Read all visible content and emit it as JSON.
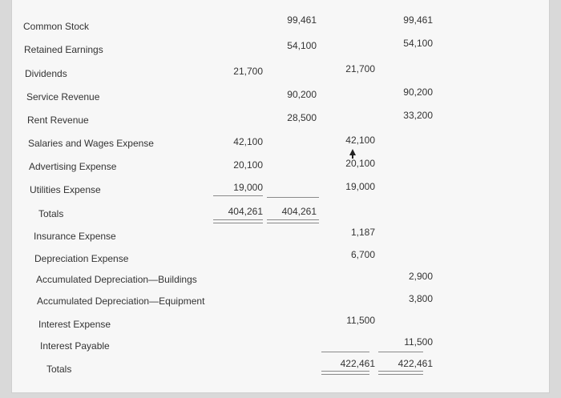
{
  "rows": [
    {
      "label": "Common Stock",
      "c1": "",
      "c2": "99,461",
      "c3": "",
      "c4": "99,461"
    },
    {
      "label": "Retained Earnings",
      "c1": "",
      "c2": "54,100",
      "c3": "",
      "c4": "54,100"
    },
    {
      "label": "Dividends",
      "c1": "21,700",
      "c2": "",
      "c3": "21,700",
      "c4": ""
    },
    {
      "label": "Service Revenue",
      "c1": "",
      "c2": "90,200",
      "c3": "",
      "c4": "90,200"
    },
    {
      "label": "Rent Revenue",
      "c1": "",
      "c2": "28,500",
      "c3": "",
      "c4": "33,200"
    },
    {
      "label": "Salaries and Wages Expense",
      "c1": "42,100",
      "c2": "",
      "c3": "42,100",
      "c4": ""
    },
    {
      "label": "Advertising Expense",
      "c1": "20,100",
      "c2": "",
      "c3": "20,100",
      "c4": ""
    },
    {
      "label": "Utilities Expense",
      "c1": "19,000",
      "c2": "",
      "c3": "19,000",
      "c4": ""
    },
    {
      "label": "Totals",
      "c1": "404,261",
      "c2": "404,261",
      "c3": "",
      "c4": ""
    },
    {
      "label": "Insurance Expense",
      "c1": "",
      "c2": "",
      "c3": "1,187",
      "c4": ""
    },
    {
      "label": "Depreciation Expense",
      "c1": "",
      "c2": "",
      "c3": "6,700",
      "c4": ""
    },
    {
      "label": "Accumulated Depreciation—Buildings",
      "c1": "",
      "c2": "",
      "c3": "",
      "c4": "2,900"
    },
    {
      "label": "Accumulated Depreciation—Equipment",
      "c1": "",
      "c2": "",
      "c3": "",
      "c4": "3,800"
    },
    {
      "label": "Interest Expense",
      "c1": "",
      "c2": "",
      "c3": "11,500",
      "c4": ""
    },
    {
      "label": "Interest Payable",
      "c1": "",
      "c2": "",
      "c3": "",
      "c4": "11,500"
    },
    {
      "label": "Totals",
      "c1": "",
      "c2": "",
      "c3": "422,461",
      "c4": "422,461"
    }
  ]
}
